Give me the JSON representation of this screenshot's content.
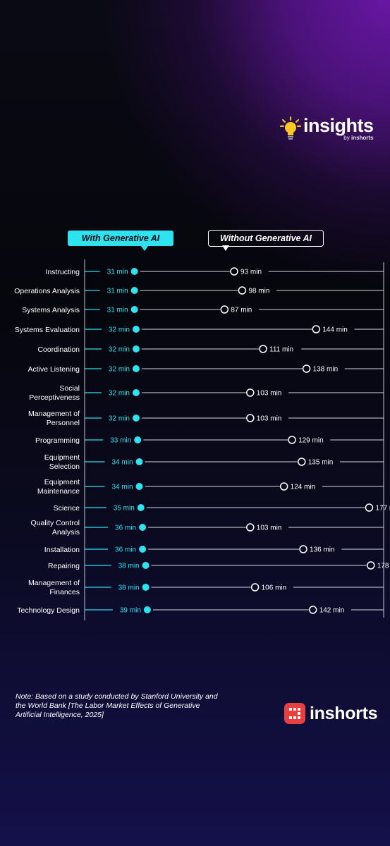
{
  "brand": {
    "insights_word": "insights",
    "insights_by_prefix": "by",
    "insights_by_name": "inshorts",
    "inshorts_word": "inshorts"
  },
  "legend": {
    "with_label": "With Generative AI",
    "without_label": "Without Generative AI"
  },
  "note": "Note: Based on a study conducted by Stanford University and the World Bank [The Labor Market Effects of Generative Artificial Intelligence, 2025]",
  "colors": {
    "with_ai": "#2de3f0",
    "without_ai": "#ffffff",
    "inshorts_red": "#e8403f",
    "bulb_yellow": "#f9c825"
  },
  "chart_data": {
    "type": "dot-comparison",
    "unit": "min",
    "categories": [
      "Instructing",
      "Operations Analysis",
      "Systems Analysis",
      "Systems Evaluation",
      "Coordination",
      "Active Listening",
      "Social Perceptiveness",
      "Management of Personnel",
      "Programming",
      "Equipment Selection",
      "Equipment Maintenance",
      "Science",
      "Quality Control Analysis",
      "Installation",
      "Repairing",
      "Management of Finances",
      "Technology Design"
    ],
    "category_lines": [
      [
        "Instructing"
      ],
      [
        "Operations Analysis"
      ],
      [
        "Systems Analysis"
      ],
      [
        "Systems Evaluation"
      ],
      [
        "Coordination"
      ],
      [
        "Active Listening"
      ],
      [
        "Social",
        "Perceptiveness"
      ],
      [
        "Management of",
        "Personnel"
      ],
      [
        "Programming"
      ],
      [
        "Equipment",
        "Selection"
      ],
      [
        "Equipment",
        "Maintenance"
      ],
      [
        "Science"
      ],
      [
        "Quality Control",
        "Analysis"
      ],
      [
        "Installation"
      ],
      [
        "Repairing"
      ],
      [
        "Management of",
        "Finances"
      ],
      [
        "Technology Design"
      ]
    ],
    "series": [
      {
        "name": "With Generative AI",
        "values": [
          31,
          31,
          31,
          32,
          32,
          32,
          32,
          32,
          33,
          34,
          34,
          35,
          36,
          36,
          38,
          38,
          39
        ]
      },
      {
        "name": "Without Generative AI",
        "values": [
          93,
          98,
          87,
          144,
          111,
          138,
          103,
          103,
          129,
          135,
          124,
          177,
          103,
          136,
          178,
          106,
          142
        ]
      }
    ],
    "xlim": [
      0,
      186
    ]
  }
}
